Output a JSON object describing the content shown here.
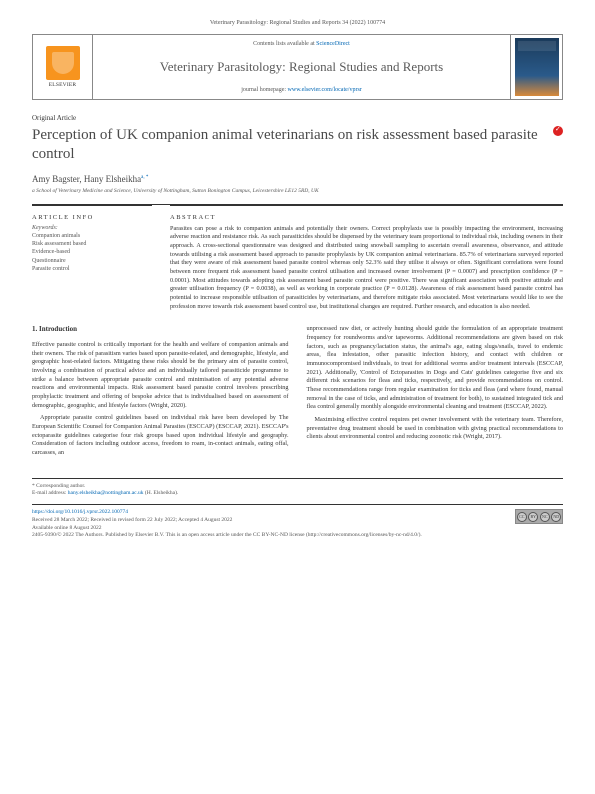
{
  "citation": "Veterinary Parasitology: Regional Studies and Reports 34 (2022) 100774",
  "publisher": {
    "contents_label": "Contents lists available at",
    "contents_link": "ScienceDirect",
    "journal_name": "Veterinary Parasitology: Regional Studies and Reports",
    "homepage_label": "journal homepage:",
    "homepage_url": "www.elsevier.com/locate/vprsr",
    "logo_label": "ELSEVIER"
  },
  "article": {
    "type": "Original Article",
    "title": "Perception of UK companion animal veterinarians on risk assessment based parasite control",
    "authors": "Amy Bagster, Hany Elsheikha",
    "author_sup": "a, *",
    "affiliation": "a School of Veterinary Medicine and Science, University of Nottingham, Sutton Bonington Campus, Leicestershire LE12 5RD, UK"
  },
  "meta": {
    "article_info_heading": "ARTICLE INFO",
    "abstract_heading": "ABSTRACT",
    "keywords_label": "Keywords:",
    "keywords": [
      "Companion animals",
      "Risk assessment based",
      "Evidence-based",
      "Questionnaire",
      "Parasite control"
    ],
    "abstract": "Parasites can pose a risk to companion animals and potentially their owners. Correct prophylaxis use is possibly impacting the environment, increasing adverse reaction and resistance risk. As such parasiticides should be dispensed by the veterinary team proportional to individual risk, including owners in their approach. A cross-sectional questionnaire was designed and distributed using snowball sampling to ascertain overall awareness, observance, and attitude towards utilising a risk assessment based approach to parasite prophylaxis by UK companion animal veterinarians. 85.7% of veterinarians surveyed reported that they were aware of risk assessment based parasite control whereas only 52.3% said they utilise it always or often. Significant correlations were found between more frequent risk assessment based parasite control utilisation and increased owner involvement (P = 0.0007) and prescription confidence (P = 0.0001). Most attitudes towards adopting risk assessment based parasite control were positive. There was significant association with positive attitude and greater utilisation frequency (P = 0.0038), as well as working in corporate practice (P = 0.0128). Awareness of risk assessment based parasite control has potential to increase responsible utilisation of parasiticides by veterinarians, and therefore mitigate risks associated. Most veterinarians would like to see the profession move towards risk assessment based control use, but institutional changes are required. Further research, and education is also needed."
  },
  "body": {
    "intro_heading": "1. Introduction",
    "col1_p1": "Effective parasite control is critically important for the health and welfare of companion animals and their owners. The risk of parasitism varies based upon parasite-related, and demographic, lifestyle, and geographic host-related factors. Mitigating these risks should be the primary aim of parasite control, involving a combination of practical advice and an individually tailored parasiticide programme to strike a balance between appropriate parasite control and minimisation of any potential adverse reactions and environmental impacts. Risk assessment based parasite control involves prescribing prophylactic treatment and offering of bespoke advice that is individualised based on assessment of demographic, geographic, and lifestyle factors (Wright, 2020).",
    "col1_p2": "Appropriate parasite control guidelines based on individual risk have been developed by The European Scientific Counsel for Companion Animal Parasites (ESCCAP) (ESCCAP, 2021). ESCCAP's ectoparasite guidelines categorise four risk groups based upon individual lifestyle and geography. Consideration of factors including outdoor access, freedom to roam, in-contact animals, eating offal, carcasses, an",
    "col2_p1": "unprocessed raw diet, or actively hunting should guide the formulation of an appropriate treatment frequency for roundworms and/or tapeworms. Additional recommendations are given based on risk factors, such as pregnancy/lactation status, the animal's age, eating slugs/snails, travel to endemic areas, flea infestation, other parasitic infection history, and contact with children or immunocompromised individuals, to treat for additional worms and/or treatment intervals (ESCCAP, 2021). Additionally, 'Control of Ectoparasites in Dogs and Cats' guidelines categorise five and six different risk scenarios for fleas and ticks, respectively, and provide recommendations on control. These recommendations range from regular examination for ticks and fleas (and where found, manual removal in the case of ticks, and administration of treatment for both), to sustained integrated tick and flea control generally monthly alongside environmental cleaning and treatment (ESCCAP, 2022).",
    "col2_p2": "Maximising effective control requires pet owner involvement with the veterinary team. Therefore, preventative drug treatment should be used in combination with giving practical recommendations to clients about environmental control and reducing zoonotic risk (Wright, 2017)."
  },
  "footer": {
    "corresponding_label": "* Corresponding author.",
    "email_label": "E-mail address:",
    "email": "hany.elsheikha@nottingham.ac.uk",
    "email_suffix": "(H. Elsheikha).",
    "doi": "https://doi.org/10.1016/j.vprsr.2022.100774",
    "history": "Received 28 March 2022; Received in revised form 22 July 2022; Accepted 4 August 2022",
    "available": "Available online 8 August 2022",
    "copyright": "2405-9390/© 2022 The Authors. Published by Elsevier B.V. This is an open access article under the CC BY-NC-ND license (http://creativecommons.org/licenses/by-nc-nd/4.0/)."
  },
  "colors": {
    "link": "#0066b3",
    "elsevier_orange": "#f7941e",
    "text": "#333333",
    "muted": "#555555",
    "rule": "#333333"
  }
}
